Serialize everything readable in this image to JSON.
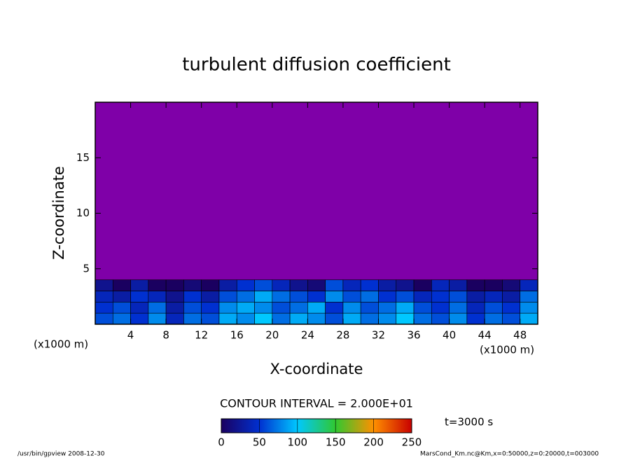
{
  "chart_data": {
    "type": "heatmap",
    "title": "turbulent diffusion coefficient",
    "xlabel": "X-coordinate",
    "ylabel": "Z-coordinate",
    "x_unit_label": "(x1000 m)",
    "xlim": [
      0,
      50
    ],
    "ylim": [
      0,
      20
    ],
    "xticks": [
      4,
      8,
      12,
      16,
      20,
      24,
      28,
      32,
      36,
      40,
      44,
      48
    ],
    "yticks": [
      5,
      10,
      15
    ],
    "background_color": "#7f00a8",
    "x": [
      1,
      3,
      5,
      7,
      9,
      11,
      13,
      15,
      17,
      19,
      21,
      23,
      25,
      27,
      29,
      31,
      33,
      35,
      37,
      39,
      41,
      43,
      45,
      47,
      49
    ],
    "z": [
      0.5,
      1.5,
      2.5,
      3.5
    ],
    "values": [
      [
        60,
        70,
        50,
        80,
        40,
        70,
        60,
        90,
        80,
        100,
        70,
        90,
        80,
        60,
        90,
        70,
        80,
        100,
        70,
        60,
        80,
        50,
        70,
        60,
        90
      ],
      [
        50,
        60,
        40,
        70,
        30,
        60,
        50,
        80,
        90,
        80,
        60,
        70,
        90,
        50,
        80,
        60,
        70,
        90,
        60,
        50,
        70,
        40,
        60,
        50,
        80
      ],
      [
        40,
        30,
        50,
        40,
        20,
        50,
        30,
        60,
        70,
        90,
        70,
        60,
        50,
        80,
        60,
        70,
        50,
        60,
        40,
        50,
        60,
        30,
        40,
        30,
        70
      ],
      [
        20,
        0,
        30,
        0,
        0,
        10,
        0,
        30,
        50,
        60,
        40,
        20,
        10,
        60,
        40,
        50,
        30,
        20,
        0,
        40,
        30,
        0,
        0,
        10,
        40
      ]
    ],
    "colormap": [
      "#1a0060",
      "#0030d0",
      "#00c8ff",
      "#30c830",
      "#ff9000",
      "#c80000"
    ],
    "colorbar_lim": [
      0,
      250
    ],
    "colorbar_ticks": [
      0,
      50,
      100,
      150,
      200,
      250
    ],
    "contour_interval_text": "CONTOUR INTERVAL = 2.000E+01",
    "time_text": "t=3000 s",
    "footer_left": "/usr/bin/gpview   2008-12-30",
    "footer_right": "MarsCond_Km.nc@Km,x=0:50000,z=0:20000,t=003000"
  }
}
